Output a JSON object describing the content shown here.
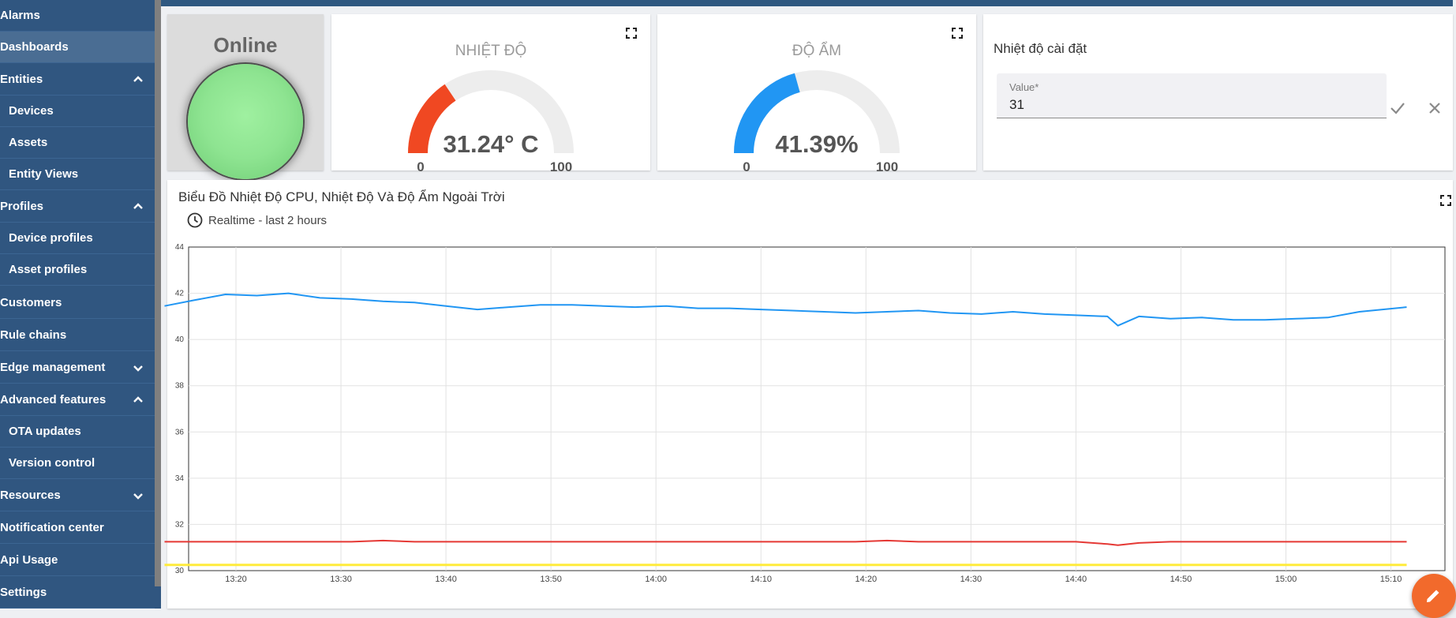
{
  "sidebar": {
    "items": [
      {
        "label": "Alarms"
      },
      {
        "label": "Dashboards"
      },
      {
        "label": "Entities"
      },
      {
        "label": "Devices"
      },
      {
        "label": "Assets"
      },
      {
        "label": "Entity Views"
      },
      {
        "label": "Profiles"
      },
      {
        "label": "Device profiles"
      },
      {
        "label": "Asset profiles"
      },
      {
        "label": "Customers"
      },
      {
        "label": "Rule chains"
      },
      {
        "label": "Edge management"
      },
      {
        "label": "Advanced features"
      },
      {
        "label": "OTA updates"
      },
      {
        "label": "Version control"
      },
      {
        "label": "Resources"
      },
      {
        "label": "Notification center"
      },
      {
        "label": "Api Usage"
      },
      {
        "label": "Settings"
      }
    ]
  },
  "status": {
    "label": "Online",
    "led_color": "#8ee491"
  },
  "temperature_gauge": {
    "title": "NHIỆT ĐỘ",
    "value_text": "31.24° C",
    "value": 31.24,
    "min_label": "0",
    "max_label": "100",
    "color": "#f04822"
  },
  "humidity_gauge": {
    "title": "ĐỘ ẨM",
    "value_text": "41.39%",
    "value": 41.39,
    "min_label": "0",
    "max_label": "100",
    "color": "#2196f3"
  },
  "setpoint": {
    "title": "Nhiệt độ cài đặt",
    "field_label": "Value*",
    "field_value": "31"
  },
  "chart_section": {
    "title": "Biểu Đồ Nhiệt Độ CPU, Nhiệt Độ Và Độ Ẩm Ngoài Trời",
    "timewindow": "Realtime - last 2 hours"
  },
  "chart_data": {
    "type": "line",
    "ylim": [
      30,
      44
    ],
    "yticks": [
      "44",
      "42",
      "40",
      "38",
      "36",
      "34",
      "32",
      "30"
    ],
    "xticks": [
      "13:20",
      "13:30",
      "13:40",
      "13:50",
      "14:00",
      "14:10",
      "14:20",
      "14:30",
      "14:40",
      "14:50",
      "15:00",
      "15:10"
    ],
    "x_minutes": [
      13.2,
      16,
      19,
      22,
      25,
      28,
      31,
      34,
      37,
      40,
      43,
      46,
      49,
      52,
      55,
      58,
      61,
      64,
      67,
      70,
      73,
      76,
      79,
      82,
      85,
      88,
      91,
      94,
      97,
      100,
      103,
      104,
      106,
      109,
      112,
      115,
      118,
      121,
      124,
      127,
      131.5
    ],
    "grid": true,
    "series": [
      {
        "color": "#2196f3",
        "values": [
          41.45,
          41.7,
          41.95,
          41.9,
          42.0,
          41.8,
          41.75,
          41.65,
          41.6,
          41.45,
          41.3,
          41.4,
          41.5,
          41.5,
          41.45,
          41.4,
          41.45,
          41.35,
          41.35,
          41.3,
          41.25,
          41.2,
          41.15,
          41.2,
          41.25,
          41.15,
          41.1,
          41.2,
          41.1,
          41.05,
          41.0,
          40.6,
          41.0,
          40.9,
          40.95,
          40.85,
          40.85,
          40.9,
          40.95,
          41.2,
          41.4
        ]
      },
      {
        "color": "#e53935",
        "values": [
          31.25,
          31.25,
          31.25,
          31.25,
          31.25,
          31.25,
          31.25,
          31.3,
          31.25,
          31.25,
          31.25,
          31.25,
          31.25,
          31.25,
          31.25,
          31.25,
          31.25,
          31.25,
          31.25,
          31.25,
          31.25,
          31.25,
          31.25,
          31.3,
          31.25,
          31.25,
          31.25,
          31.25,
          31.25,
          31.25,
          31.15,
          31.1,
          31.2,
          31.25,
          31.25,
          31.25,
          31.25,
          31.25,
          31.25,
          31.25,
          31.25
        ]
      },
      {
        "color": "#ffeb3b",
        "values": [
          30.25,
          30.25,
          30.25,
          30.25,
          30.25,
          30.25,
          30.25,
          30.25,
          30.25,
          30.25,
          30.25,
          30.25,
          30.25,
          30.25,
          30.25,
          30.25,
          30.25,
          30.25,
          30.25,
          30.25,
          30.25,
          30.25,
          30.25,
          30.25,
          30.25,
          30.25,
          30.25,
          30.25,
          30.25,
          30.25,
          30.25,
          30.25,
          30.25,
          30.25,
          30.25,
          30.25,
          30.25,
          30.25,
          30.25,
          30.25,
          30.25
        ]
      }
    ]
  }
}
